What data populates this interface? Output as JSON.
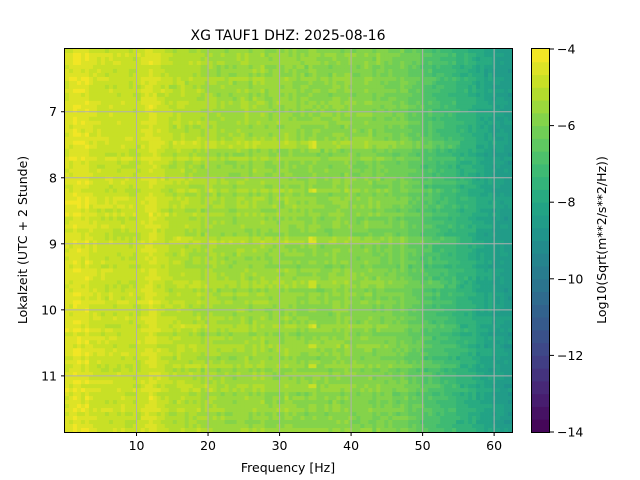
{
  "chart_data": {
    "type": "heatmap",
    "title": "XG TAUF1  DHZ: 2025-08-16",
    "xlabel": "Frequency [Hz]",
    "ylabel": "Lokalzeit (UTC + 2 Stunde)",
    "xlim": [
      0,
      62.5
    ],
    "ylim": [
      11.85,
      6.05
    ],
    "y_inverted": true,
    "grid": true,
    "x_ticks": [
      10,
      20,
      30,
      40,
      50,
      60
    ],
    "y_ticks": [
      7,
      8,
      9,
      10,
      11
    ],
    "colorbar": {
      "label": "Log10(Sqrt(m**2/s**2/Hz))",
      "vmin": -14,
      "vmax": -4,
      "ticks": [
        -4,
        -6,
        -8,
        -10,
        -12,
        -14
      ],
      "levels": 30,
      "colormap": "viridis"
    },
    "frequency_profile_hz": [
      0,
      2,
      5,
      10,
      12,
      15,
      20,
      30,
      40,
      47,
      50,
      55,
      60,
      62.5
    ],
    "frequency_profile_log10": [
      -4.7,
      -4.4,
      -4.7,
      -4.9,
      -4.6,
      -5.1,
      -5.4,
      -5.6,
      -5.8,
      -6.1,
      -6.6,
      -7.4,
      -8.2,
      -8.6
    ],
    "high_energy_time_bands_h": [
      7.5,
      8.2,
      8.95,
      9.6,
      10.25,
      10.55,
      10.85,
      11.15
    ],
    "resonance_line_hz": 34.5
  }
}
